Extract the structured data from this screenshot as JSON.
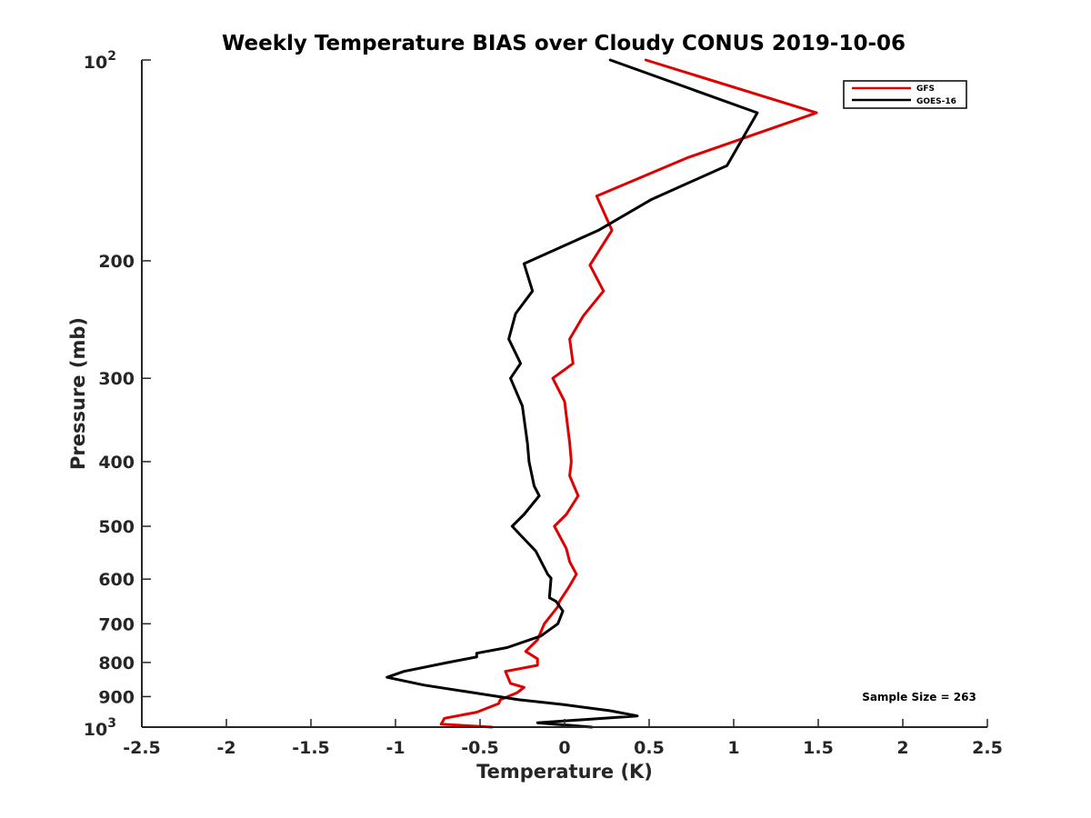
{
  "chart_data": {
    "type": "line",
    "title": "Weekly Temperature BIAS over Cloudy CONUS 2019-10-06",
    "xlabel": "Temperature (K)",
    "ylabel": "Pressure (mb)",
    "xlim": [
      -2.5,
      2.5
    ],
    "ylim": [
      100,
      1000
    ],
    "y_scale": "log",
    "y_reversed": true,
    "x_ticks": [
      -2.5,
      -2,
      -1.5,
      -1,
      -0.5,
      0,
      0.5,
      1,
      1.5,
      2,
      2.5
    ],
    "x_tick_labels": [
      "-2.5",
      "-2",
      "-1.5",
      "-1",
      "-0.5",
      "0",
      "0.5",
      "1",
      "1.5",
      "2",
      "2.5"
    ],
    "y_ticks": [
      200,
      300,
      400,
      500,
      600,
      700,
      800,
      900
    ],
    "y_tick_labels": [
      "200",
      "300",
      "400",
      "500",
      "600",
      "700",
      "800",
      "900"
    ],
    "y_tick_top": {
      "base": "10",
      "exponent": "2",
      "value": 100
    },
    "y_tick_bottom": {
      "base": "10",
      "exponent": "3",
      "value": 1000
    },
    "grid": false,
    "legend_position": "top-right",
    "annotation": "Sample Size = 263",
    "series": [
      {
        "name": "GFS",
        "color": "#e00000",
        "points": [
          [
            0.48,
            100
          ],
          [
            1.49,
            120
          ],
          [
            0.73,
            140
          ],
          [
            0.19,
            160
          ],
          [
            0.28,
            180
          ],
          [
            0.15,
            203
          ],
          [
            0.23,
            222
          ],
          [
            0.11,
            242
          ],
          [
            0.03,
            262
          ],
          [
            0.05,
            285
          ],
          [
            -0.07,
            300
          ],
          [
            0.0,
            325
          ],
          [
            0.03,
            375
          ],
          [
            0.04,
            400
          ],
          [
            0.03,
            420
          ],
          [
            0.08,
            450
          ],
          [
            0.01,
            480
          ],
          [
            -0.06,
            500
          ],
          [
            0.01,
            540
          ],
          [
            0.03,
            565
          ],
          [
            0.07,
            590
          ],
          [
            0.02,
            620
          ],
          [
            -0.03,
            648
          ],
          [
            -0.04,
            660
          ],
          [
            -0.12,
            700
          ],
          [
            -0.16,
            740
          ],
          [
            -0.23,
            770
          ],
          [
            -0.16,
            790
          ],
          [
            -0.16,
            808
          ],
          [
            -0.35,
            825
          ],
          [
            -0.32,
            860
          ],
          [
            -0.24,
            872
          ],
          [
            -0.28,
            888
          ],
          [
            -0.38,
            910
          ],
          [
            -0.39,
            922
          ],
          [
            -0.52,
            950
          ],
          [
            -0.71,
            970
          ],
          [
            -0.73,
            990
          ],
          [
            -0.43,
            1000
          ]
        ]
      },
      {
        "name": "GOES-16",
        "color": "#000000",
        "points": [
          [
            0.27,
            100
          ],
          [
            1.14,
            120
          ],
          [
            0.96,
            144
          ],
          [
            0.51,
            162
          ],
          [
            0.2,
            180
          ],
          [
            -0.24,
            202
          ],
          [
            -0.19,
            222
          ],
          [
            -0.29,
            240
          ],
          [
            -0.33,
            262
          ],
          [
            -0.26,
            285
          ],
          [
            -0.32,
            300
          ],
          [
            -0.25,
            330
          ],
          [
            -0.22,
            375
          ],
          [
            -0.21,
            400
          ],
          [
            -0.18,
            435
          ],
          [
            -0.15,
            450
          ],
          [
            -0.24,
            480
          ],
          [
            -0.31,
            500
          ],
          [
            -0.17,
            545
          ],
          [
            -0.1,
            590
          ],
          [
            -0.08,
            598
          ],
          [
            -0.09,
            640
          ],
          [
            -0.05,
            648
          ],
          [
            -0.01,
            670
          ],
          [
            -0.04,
            700
          ],
          [
            -0.14,
            730
          ],
          [
            -0.34,
            760
          ],
          [
            -0.52,
            775
          ],
          [
            -0.52,
            785
          ],
          [
            -0.69,
            800
          ],
          [
            -0.95,
            825
          ],
          [
            -1.05,
            842
          ],
          [
            -0.83,
            865
          ],
          [
            -0.27,
            910
          ],
          [
            -0.01,
            925
          ],
          [
            0.27,
            945
          ],
          [
            0.43,
            962
          ],
          [
            -0.16,
            985
          ],
          [
            0.16,
            1000
          ]
        ]
      }
    ]
  }
}
